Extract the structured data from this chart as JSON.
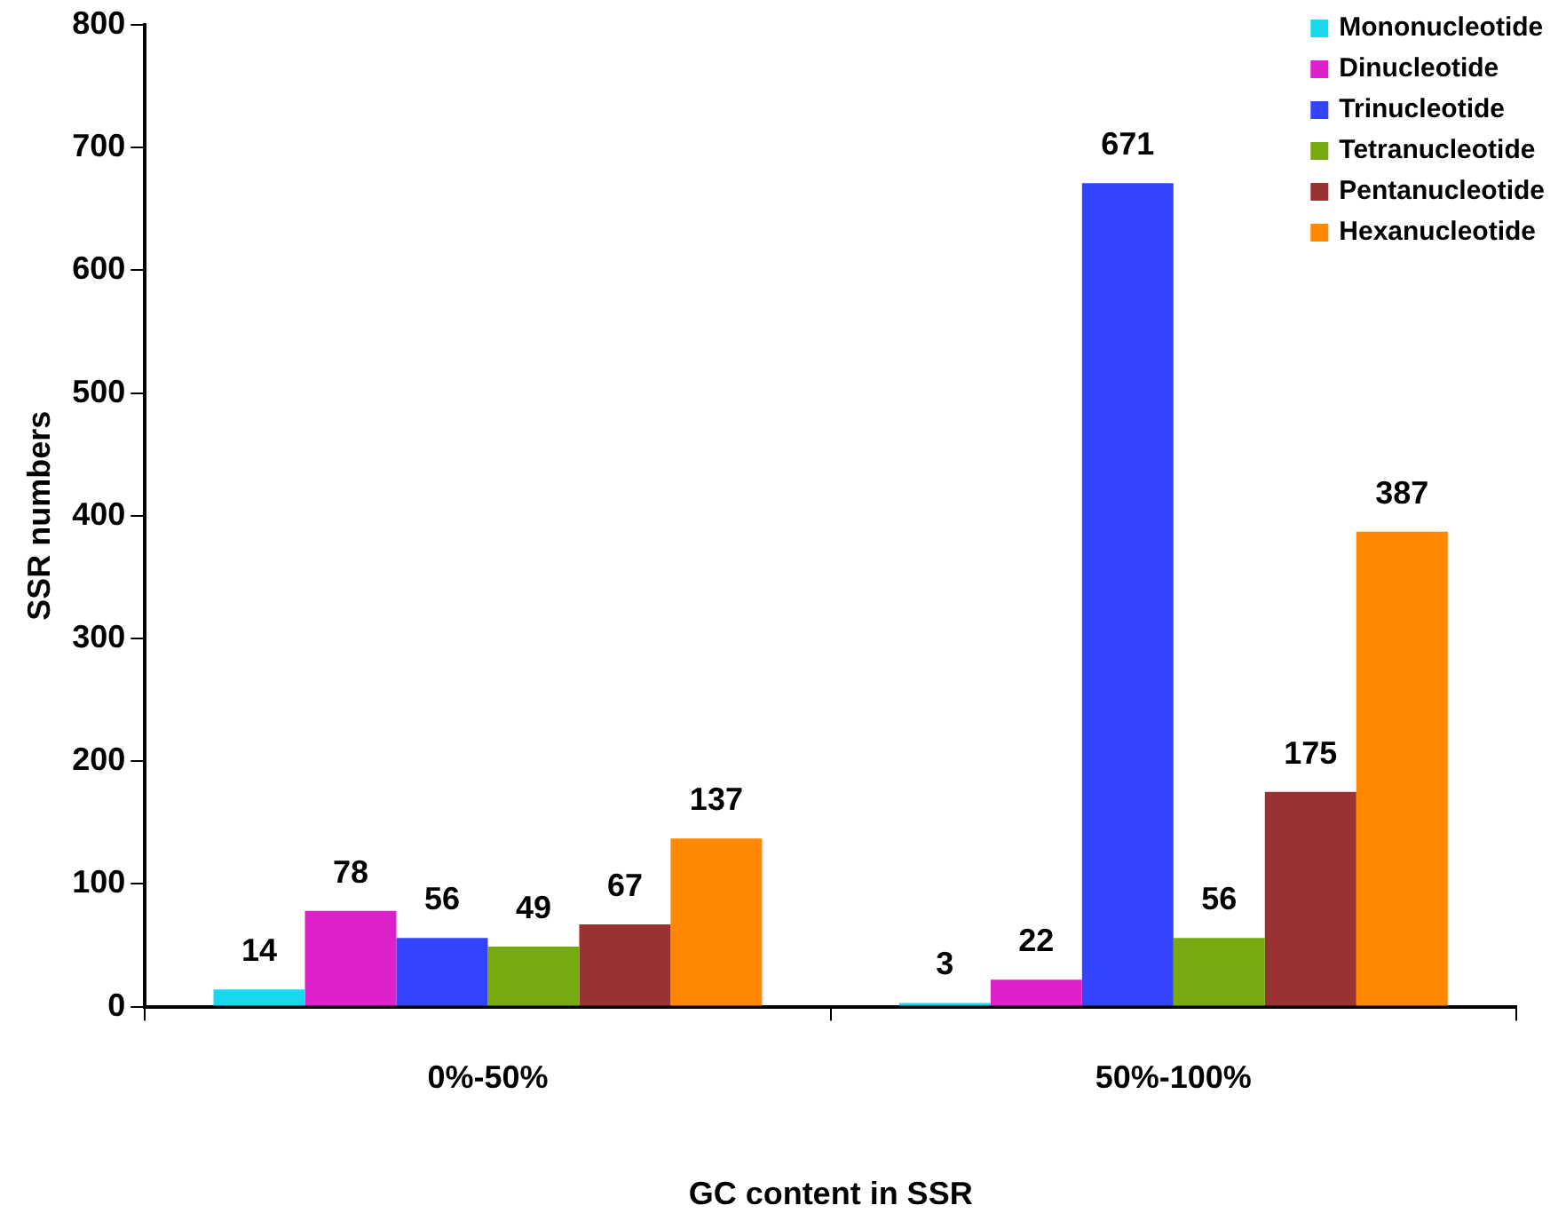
{
  "chart_data": {
    "type": "bar",
    "xlabel": "GC content in SSR",
    "ylabel": "SSR numbers",
    "categories": [
      "0%-50%",
      "50%-100%"
    ],
    "series": [
      {
        "name": "Mononucleotide",
        "color": "#19d8ee",
        "values": [
          14,
          3
        ]
      },
      {
        "name": "Dinucleotide",
        "color": "#dd22cc",
        "values": [
          78,
          22
        ]
      },
      {
        "name": "Trinucleotide",
        "color": "#3344ff",
        "values": [
          56,
          671
        ]
      },
      {
        "name": "Tetranucleotide",
        "color": "#77aa11",
        "values": [
          49,
          56
        ]
      },
      {
        "name": "Pentanucleotide",
        "color": "#993333",
        "values": [
          67,
          175
        ]
      },
      {
        "name": "Hexanucleotide",
        "color": "#ff8800",
        "values": [
          137,
          387
        ]
      }
    ],
    "ylim": [
      0,
      800
    ],
    "yticks": [
      0,
      100,
      200,
      300,
      400,
      500,
      600,
      700,
      800
    ],
    "grid": false,
    "legend": "top right",
    "data_labels": true
  }
}
